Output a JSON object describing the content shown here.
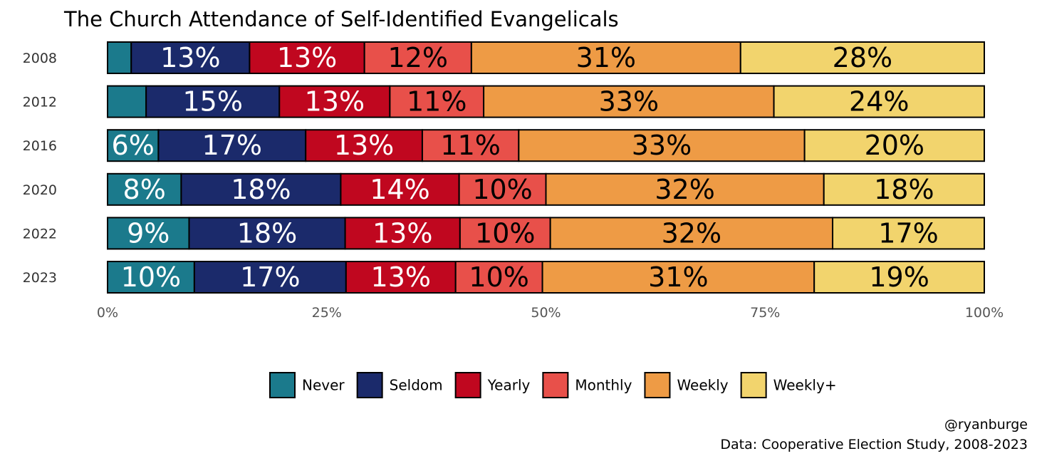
{
  "chart_data": {
    "type": "bar",
    "orientation": "horizontal",
    "stacked": true,
    "title": "The Church Attendance of Self-Identified Evangelicals",
    "categories": [
      "2008",
      "2012",
      "2016",
      "2020",
      "2022",
      "2023"
    ],
    "series": [
      {
        "name": "Never",
        "color": "#1B7A8C",
        "text_color": "#ffffff",
        "values": [
          2.7,
          4.4,
          5.8,
          8.4,
          9.3,
          9.9
        ],
        "labels": [
          "",
          "",
          "6%",
          "8%",
          "9%",
          "10%"
        ]
      },
      {
        "name": "Seldom",
        "color": "#1B2A6B",
        "text_color": "#ffffff",
        "values": [
          13.5,
          15.2,
          16.8,
          18.2,
          17.8,
          17.3
        ],
        "labels": [
          "13%",
          "15%",
          "17%",
          "18%",
          "18%",
          "17%"
        ]
      },
      {
        "name": "Yearly",
        "color": "#C0071F",
        "text_color": "#ffffff",
        "values": [
          13.1,
          12.6,
          13.3,
          13.5,
          13.1,
          12.5
        ],
        "labels": [
          "13%",
          "13%",
          "13%",
          "14%",
          "13%",
          "13%"
        ]
      },
      {
        "name": "Monthly",
        "color": "#E8504A",
        "text_color": "#000000",
        "values": [
          12.2,
          10.7,
          11.0,
          9.9,
          10.3,
          9.9
        ],
        "labels": [
          "12%",
          "11%",
          "11%",
          "10%",
          "10%",
          "10%"
        ]
      },
      {
        "name": "Weekly",
        "color": "#EE9B45",
        "text_color": "#000000",
        "values": [
          30.7,
          33.1,
          32.6,
          31.7,
          32.2,
          31.0
        ],
        "labels": [
          "31%",
          "33%",
          "33%",
          "32%",
          "32%",
          "31%"
        ]
      },
      {
        "name": "Weekly+",
        "color": "#F2D46D",
        "text_color": "#000000",
        "values": [
          27.8,
          24.0,
          20.5,
          18.3,
          17.3,
          19.4
        ],
        "labels": [
          "28%",
          "24%",
          "20%",
          "18%",
          "17%",
          "19%"
        ]
      }
    ],
    "x_ticks": [
      "0%",
      "25%",
      "50%",
      "75%",
      "100%"
    ],
    "xlim": [
      0,
      100
    ],
    "grid": false,
    "legend_position": "bottom"
  },
  "credits": {
    "handle": "@ryanburge",
    "source": "Data: Cooperative Election Study, 2008-2023"
  }
}
